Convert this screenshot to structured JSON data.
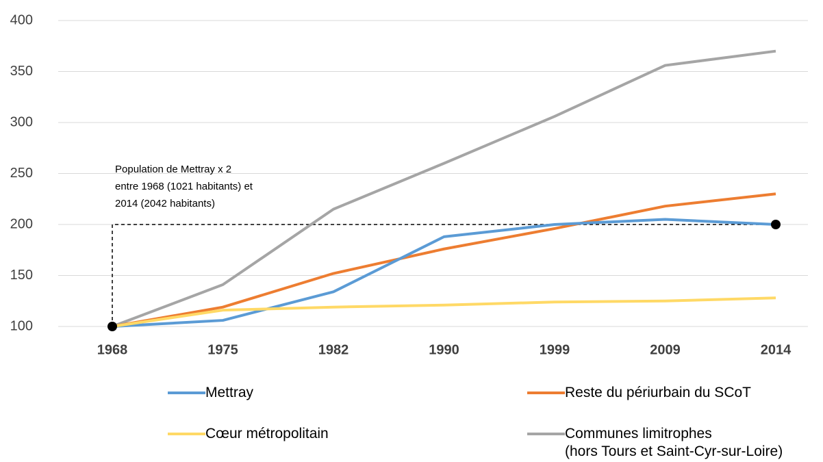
{
  "chart_data": {
    "type": "line",
    "categories": [
      "1968",
      "1975",
      "1982",
      "1990",
      "1999",
      "2009",
      "2014"
    ],
    "series": [
      {
        "name": "Mettray",
        "color": "#5b9bd5",
        "values": [
          100,
          106,
          134,
          188,
          200,
          205,
          200
        ]
      },
      {
        "name": "Reste du périurbain du SCoT",
        "color": "#ed7d31",
        "values": [
          100,
          119,
          152,
          176,
          196,
          218,
          230
        ]
      },
      {
        "name": "Cœur métropolitain",
        "color": "#ffd966",
        "values": [
          100,
          116,
          119,
          121,
          124,
          125,
          128
        ]
      },
      {
        "name": "Communes limitrophes\n(hors Tours et Saint-Cyr-sur-Loire)",
        "color": "#a5a5a5",
        "values": [
          100,
          141,
          215,
          260,
          306,
          356,
          370
        ]
      }
    ],
    "ylim": [
      100,
      400
    ],
    "yticks": [
      100,
      150,
      200,
      250,
      300,
      350,
      400
    ],
    "grid": true,
    "annotation": [
      "Population de Mettray x 2",
      "entre 1968 (1021 habitants) et",
      "2014 (2042 habitants)"
    ]
  }
}
